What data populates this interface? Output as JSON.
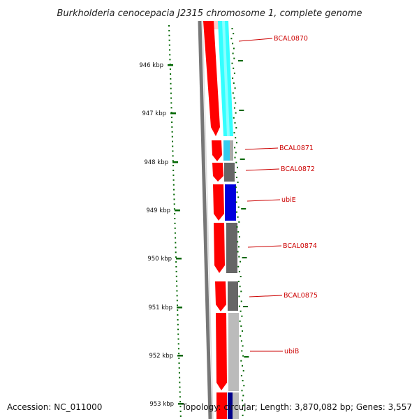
{
  "title": "Burkholderia cenocepacia J2315 chromosome 1, complete genome",
  "footer": {
    "accession": "Accession: NC_011000",
    "topology": "Topology: circular; Length: 3,870,082 bp; Genes: 3,557"
  },
  "axis": {
    "unit": "kbp",
    "ticks": [
      "946 kbp",
      "947 kbp",
      "948 kbp",
      "949 kbp",
      "950 kbp",
      "951 kbp",
      "952 kbp",
      "953 kbp"
    ]
  },
  "gene_labels": [
    "BCAL0870",
    "BCAL0871",
    "BCAL0872",
    "ubiE",
    "BCAL0874",
    "BCAL0875",
    "ubiB"
  ],
  "colors": {
    "forward_cds": "#ff0000",
    "cyan_track": "#33ffff",
    "blue_track": "#0000dd",
    "gray_track": "#666666",
    "light_gray_track": "#bbbbbb",
    "backbone": "#777777",
    "tick": "#006600",
    "label": "#cc0000"
  }
}
